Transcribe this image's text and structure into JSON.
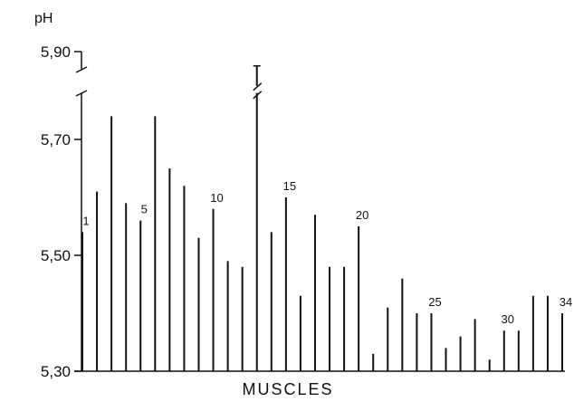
{
  "chart_data": {
    "type": "bar",
    "title": "",
    "xlabel": "MUSCLES",
    "ylabel": "pH",
    "y_tick_labels": [
      "5,30",
      "5,50",
      "5,70",
      "5,90"
    ],
    "y_ticks": [
      5.3,
      5.5,
      5.7,
      5.9
    ],
    "ylim": [
      5.3,
      5.9
    ],
    "axis_break": true,
    "categories": [
      "1",
      "2",
      "3",
      "4",
      "5",
      "6",
      "7",
      "8",
      "9",
      "10",
      "11",
      "12",
      "13",
      "14",
      "15",
      "16",
      "17",
      "18",
      "19",
      "20",
      "21",
      "22",
      "23",
      "24",
      "25",
      "26",
      "27",
      "28",
      "29",
      "30",
      "31",
      "32",
      "33",
      "34"
    ],
    "labeled_bars": {
      "1": "1",
      "5": "5",
      "10": "10",
      "15": "15",
      "20": "20",
      "25": "25",
      "30": "30",
      "34": "34"
    },
    "broken_bar": "13",
    "values": [
      5.54,
      5.61,
      5.74,
      5.59,
      5.56,
      5.74,
      5.65,
      5.62,
      5.53,
      5.58,
      5.49,
      5.48,
      5.78,
      5.54,
      5.6,
      5.43,
      5.57,
      5.48,
      5.48,
      5.55,
      5.33,
      5.41,
      5.46,
      5.4,
      5.4,
      5.34,
      5.36,
      5.39,
      5.32,
      5.37,
      5.37,
      5.43,
      5.43,
      5.4
    ],
    "grid": false,
    "colors": {
      "bars": "#111111",
      "axes": "#111111"
    }
  }
}
